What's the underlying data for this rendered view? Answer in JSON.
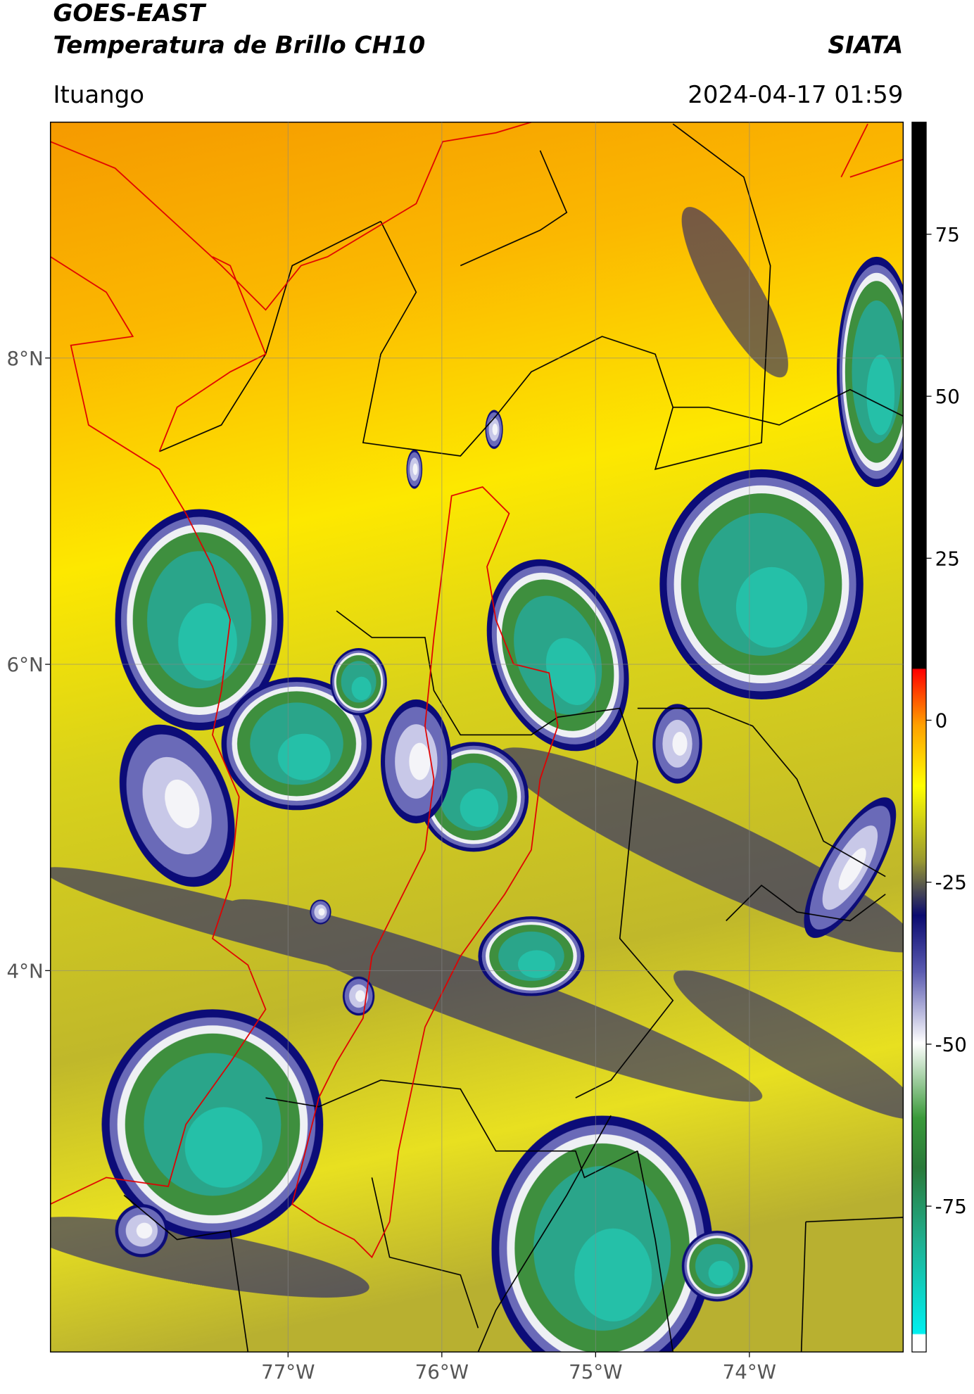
{
  "header": {
    "title": "GOES-EAST",
    "subtitle": "Temperatura de Brillo CH10",
    "source": "SIATA",
    "location": "Ituango",
    "datetime": "2024-04-17 01:59"
  },
  "map": {
    "xlim": [
      -78.545,
      -73.0
    ],
    "ylim": [
      1.51,
      9.54
    ],
    "xticks": [
      {
        "value": -77,
        "label": "77°W"
      },
      {
        "value": -76,
        "label": "76°W"
      },
      {
        "value": -75,
        "label": "75°W"
      },
      {
        "value": -74,
        "label": "74°W"
      }
    ],
    "yticks": [
      {
        "value": 8,
        "label": "8°N"
      },
      {
        "value": 6,
        "label": "6°N"
      },
      {
        "value": 4,
        "label": "4°N"
      }
    ],
    "grid": true,
    "colorbar": {
      "lim": [
        -97.5,
        92.3
      ],
      "ticks": [
        75,
        50,
        25,
        0,
        -25,
        -50,
        -75
      ]
    }
  }
}
